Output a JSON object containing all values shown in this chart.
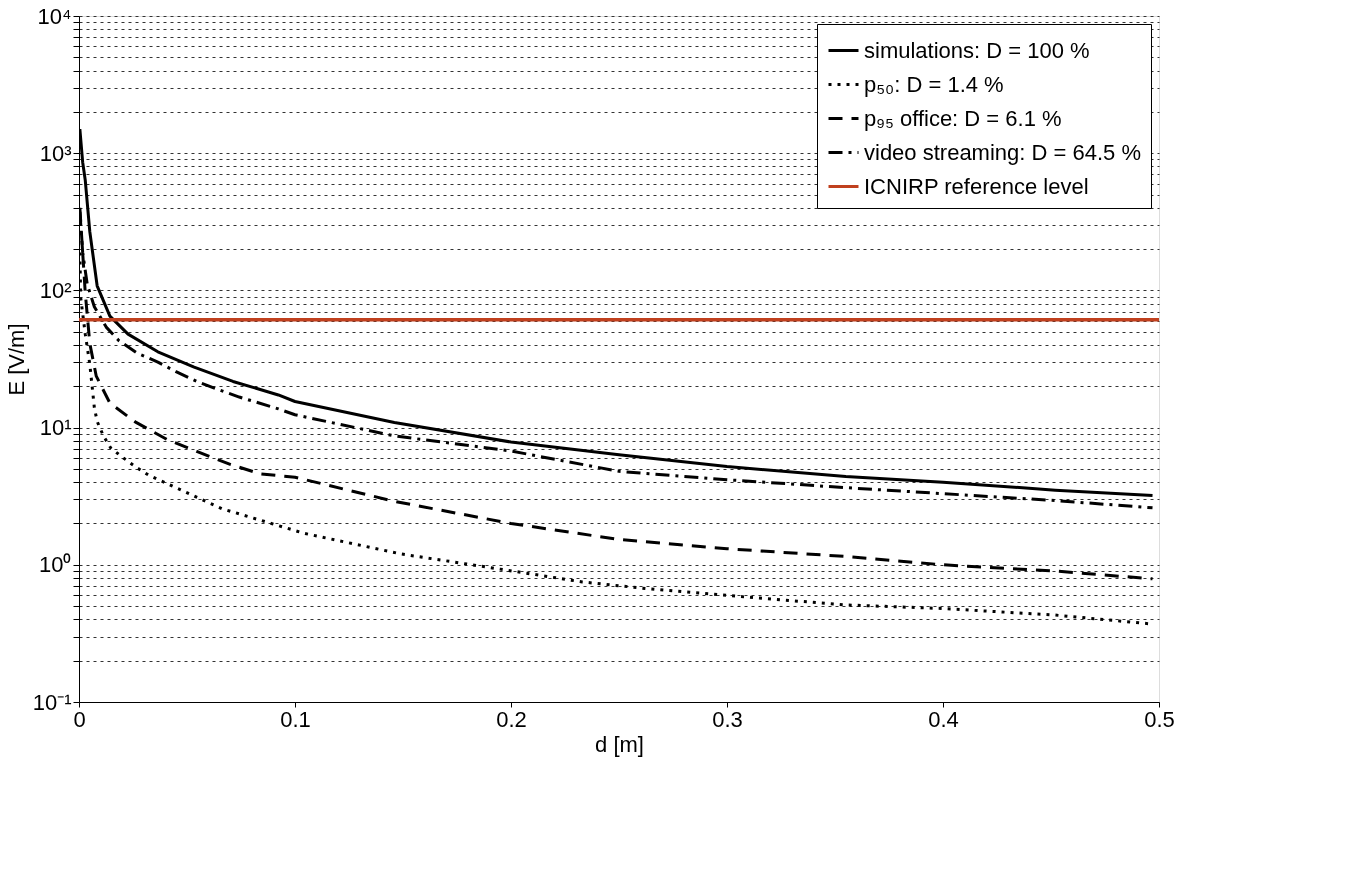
{
  "chart_data": {
    "type": "line",
    "xlabel": "d [m]",
    "ylabel": "E [V/m]",
    "xlim": [
      0,
      0.5
    ],
    "xticks": [
      0,
      0.1,
      0.2,
      0.3,
      0.4,
      0.5
    ],
    "ylim": [
      0.1,
      10000
    ],
    "log": "y",
    "yticks": [
      {
        "value": 0.1,
        "label": "10⁻¹"
      },
      {
        "value": 0.2,
        "label": null
      },
      {
        "value": 0.3,
        "label": null
      },
      {
        "value": 0.4,
        "label": null
      },
      {
        "value": 0.5,
        "label": null
      },
      {
        "value": 0.6,
        "label": null
      },
      {
        "value": 0.7,
        "label": null
      },
      {
        "value": 0.8,
        "label": null
      },
      {
        "value": 0.9,
        "label": null
      },
      {
        "value": 1,
        "label": "10⁰"
      },
      {
        "value": 2,
        "label": null
      },
      {
        "value": 3,
        "label": null
      },
      {
        "value": 4,
        "label": null
      },
      {
        "value": 5,
        "label": null
      },
      {
        "value": 6,
        "label": null
      },
      {
        "value": 7,
        "label": null
      },
      {
        "value": 8,
        "label": null
      },
      {
        "value": 9,
        "label": null
      },
      {
        "value": 10,
        "label": "10¹"
      },
      {
        "value": 20,
        "label": null
      },
      {
        "value": 30,
        "label": null
      },
      {
        "value": 40,
        "label": null
      },
      {
        "value": 50,
        "label": null
      },
      {
        "value": 60,
        "label": null
      },
      {
        "value": 70,
        "label": null
      },
      {
        "value": 80,
        "label": null
      },
      {
        "value": 90,
        "label": null
      },
      {
        "value": 100,
        "label": "10²"
      },
      {
        "value": 200,
        "label": null
      },
      {
        "value": 300,
        "label": null
      },
      {
        "value": 400,
        "label": null
      },
      {
        "value": 500,
        "label": null
      },
      {
        "value": 600,
        "label": null
      },
      {
        "value": 700,
        "label": null
      },
      {
        "value": 800,
        "label": null
      },
      {
        "value": 900,
        "label": null
      },
      {
        "value": 1000,
        "label": "10³"
      },
      {
        "value": 2000,
        "label": null
      },
      {
        "value": 3000,
        "label": null
      },
      {
        "value": 4000,
        "label": null
      },
      {
        "value": 5000,
        "label": null
      },
      {
        "value": 6000,
        "label": null
      },
      {
        "value": 7000,
        "label": null
      },
      {
        "value": 8000,
        "label": null
      },
      {
        "value": 9000,
        "label": null
      },
      {
        "value": 10000,
        "label": "10⁴"
      }
    ],
    "grid": "y",
    "legend": "top right",
    "series": [
      {
        "name": "simulations: D = 100 %",
        "color": "#000000",
        "line_style": "solid",
        "x": [
          0.0004,
          0.0017,
          0.0029,
          0.005,
          0.0084,
          0.0143,
          0.0227,
          0.0365,
          0.0533,
          0.0713,
          0.0923,
          0.1,
          0.146,
          0.2,
          0.25,
          0.3,
          0.355,
          0.4,
          0.452,
          0.497
        ],
        "values": [
          1500,
          860,
          635,
          268,
          108,
          65,
          48,
          35.7,
          27.6,
          21.7,
          17.3,
          15.5,
          10.9,
          7.85,
          6.35,
          5.2,
          4.4,
          4.0,
          3.5,
          3.2
        ]
      },
      {
        "name": "p₅₀: D = 1.4 %",
        "color": "#000000",
        "line_style": "dotted",
        "x": [
          0.0004,
          0.0008,
          0.0029,
          0.005,
          0.0071,
          0.0084,
          0.0113,
          0.0147,
          0.0206,
          0.0268,
          0.0323,
          0.0663,
          0.104,
          0.149,
          0.195,
          0.233,
          0.263,
          0.31,
          0.355,
          0.4,
          0.452,
          0.497
        ],
        "values": [
          189,
          88,
          48,
          29,
          14,
          11.1,
          8.7,
          7.1,
          6.0,
          5.1,
          4.5,
          2.56,
          1.7,
          1.2,
          0.93,
          0.75,
          0.67,
          0.58,
          0.51,
          0.48,
          0.43,
          0.37
        ]
      },
      {
        "name": "p₉₅ office: D = 6.1 %",
        "color": "#000000",
        "line_style": "dashed",
        "x": [
          0.0004,
          0.0017,
          0.0029,
          0.005,
          0.008,
          0.0143,
          0.026,
          0.0407,
          0.0545,
          0.07,
          0.0839,
          0.1,
          0.146,
          0.2,
          0.25,
          0.3,
          0.355,
          0.4,
          0.452,
          0.497
        ],
        "values": [
          400,
          189,
          96,
          41,
          23.7,
          15.1,
          11,
          8.2,
          6.7,
          5.4,
          4.6,
          4.35,
          2.9,
          2.0,
          1.53,
          1.31,
          1.15,
          1.0,
          0.9,
          0.79
        ]
      },
      {
        "name": "video streaming: D = 64.5 %",
        "color": "#000000",
        "line_style": "dashdot",
        "x": [
          0.0004,
          0.0017,
          0.0038,
          0.0071,
          0.0126,
          0.0185,
          0.0268,
          0.0365,
          0.0449,
          0.0545,
          0.0646,
          0.0742,
          0.0923,
          0.1,
          0.146,
          0.2,
          0.25,
          0.3,
          0.355,
          0.4,
          0.452,
          0.497
        ],
        "values": [
          373,
          189,
          111,
          76,
          54,
          43,
          35,
          30,
          25.6,
          21.7,
          18.9,
          16.7,
          13.7,
          12.4,
          8.7,
          6.75,
          4.8,
          4.17,
          3.65,
          3.3,
          2.94,
          2.6
        ]
      }
    ],
    "ref_lines": [
      {
        "axis": "y",
        "value": 61,
        "label": "ICNIRP reference level",
        "color": "#c0401e",
        "line_style": "solid"
      }
    ]
  }
}
